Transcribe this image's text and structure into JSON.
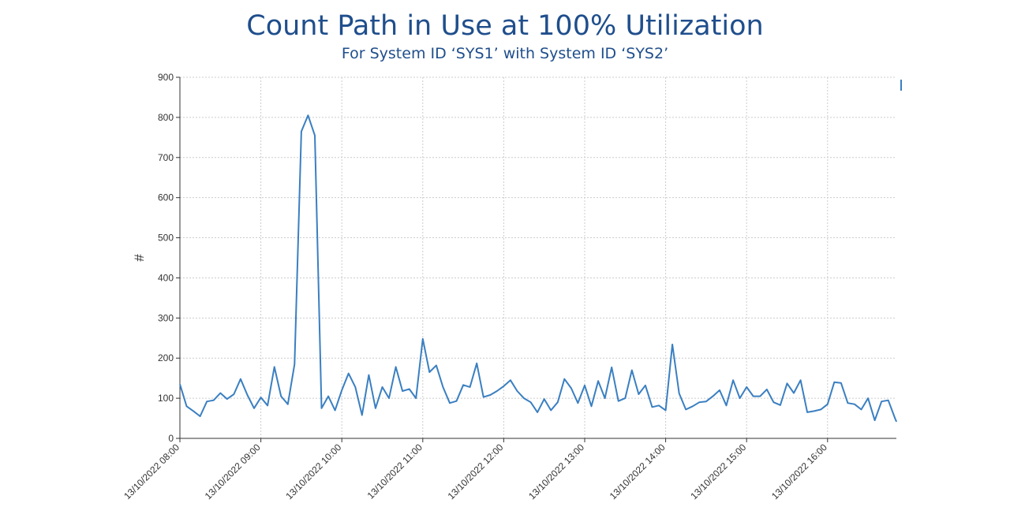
{
  "chart_data": {
    "type": "line",
    "title": "Count Path in Use at 100% Utilization",
    "subtitle": "For System ID ‘SYS1’ with System ID ‘SYS2’",
    "ylabel": "#",
    "xlabel": "",
    "ylim": [
      0,
      900
    ],
    "yticks": [
      0,
      100,
      200,
      300,
      400,
      500,
      600,
      700,
      800,
      900
    ],
    "xlim_minutes": [
      480,
      1011
    ],
    "xticks": [
      {
        "label": "13/10/2022 08:00",
        "minute": 480
      },
      {
        "label": "13/10/2022 09:00",
        "minute": 540
      },
      {
        "label": "13/10/2022 10:00",
        "minute": 600
      },
      {
        "label": "13/10/2022 11:00",
        "minute": 660
      },
      {
        "label": "13/10/2022 12:00",
        "minute": 720
      },
      {
        "label": "13/10/2022 13:00",
        "minute": 780
      },
      {
        "label": "13/10/2022 14:00",
        "minute": 840
      },
      {
        "label": "13/10/2022 15:00",
        "minute": 900
      },
      {
        "label": "13/10/2022 16:00",
        "minute": 960
      }
    ],
    "grid": true,
    "line_color": "#3a7fc1",
    "series": [
      {
        "x_minutes": [
          480,
          485,
          490,
          495,
          500,
          505,
          510,
          515,
          520,
          525,
          530,
          535,
          540,
          545,
          550,
          555,
          560,
          565,
          570,
          575,
          580,
          585,
          590,
          595,
          600,
          605,
          610,
          615,
          620,
          625,
          630,
          635,
          640,
          645,
          650,
          655,
          660,
          665,
          670,
          675,
          680,
          685,
          690,
          695,
          700,
          705,
          710,
          715,
          720,
          725,
          730,
          735,
          740,
          745,
          750,
          755,
          760,
          765,
          770,
          775,
          780,
          785,
          790,
          795,
          800,
          805,
          810,
          815,
          820,
          825,
          830,
          835,
          840,
          845,
          850,
          855,
          860,
          865,
          870,
          875,
          880,
          885,
          890,
          895,
          900,
          905,
          910,
          915,
          920,
          925,
          930,
          935,
          940,
          945,
          950,
          955,
          960,
          965,
          970,
          975,
          980,
          985,
          990,
          995,
          1000,
          1005,
          1010,
          1011
        ],
        "y": [
          135,
          80,
          68,
          55,
          92,
          95,
          113,
          98,
          110,
          148,
          108,
          75,
          102,
          82,
          178,
          105,
          85,
          185,
          765,
          805,
          755,
          75,
          105,
          70,
          120,
          162,
          128,
          58,
          158,
          75,
          128,
          100,
          178,
          118,
          123,
          100,
          248,
          165,
          182,
          128,
          88,
          93,
          133,
          128,
          187,
          103,
          108,
          118,
          130,
          145,
          118,
          100,
          90,
          65,
          98,
          70,
          90,
          148,
          125,
          88,
          132,
          80,
          143,
          100,
          177,
          93,
          100,
          170,
          110,
          132,
          78,
          82,
          70,
          234,
          112,
          72,
          80,
          90,
          92,
          105,
          120,
          82,
          145,
          100,
          128,
          105,
          105,
          122,
          90,
          83,
          137,
          113,
          145,
          65,
          68,
          72,
          85,
          140,
          138,
          88,
          85,
          72,
          100,
          45,
          92,
          95,
          50,
          42
        ]
      }
    ]
  }
}
